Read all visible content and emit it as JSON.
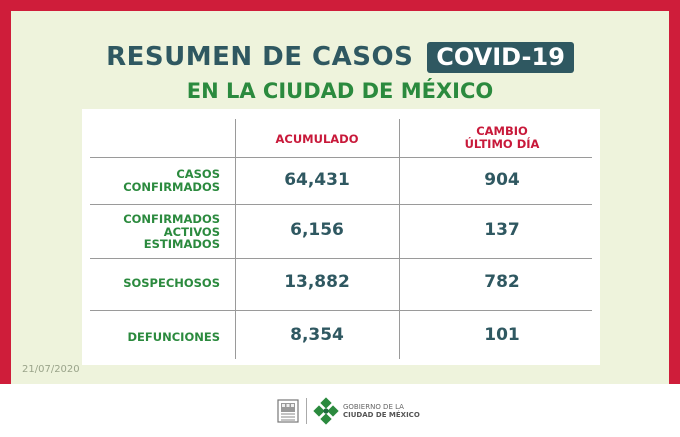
{
  "header": {
    "title": "RESUMEN DE CASOS",
    "badge": "COVID-19",
    "subtitle": "EN LA CIUDAD DE MÉXICO"
  },
  "table": {
    "col_accumulated": "ACUMULADO",
    "col_change_line1": "CAMBIO",
    "col_change_line2": "ÚLTIMO DÍA",
    "rows": [
      {
        "label_lines": [
          "CASOS",
          "CONFIRMADOS"
        ],
        "accumulated": "64,431",
        "change": "904"
      },
      {
        "label_lines": [
          "CONFIRMADOS",
          "ACTIVOS",
          "ESTIMADOS"
        ],
        "accumulated": "6,156",
        "change": "137"
      },
      {
        "label_lines": [
          "SOSPECHOSOS"
        ],
        "accumulated": "13,882",
        "change": "782"
      },
      {
        "label_lines": [
          "DEFUNCIONES"
        ],
        "accumulated": "8,354",
        "change": "101"
      }
    ]
  },
  "footer": {
    "date": "21/07/2020",
    "gov_line1": "GOBIERNO DE LA",
    "gov_line2": "CIUDAD DE MÉXICO"
  },
  "colors": {
    "frame": "#cf1d3a",
    "panel": "#eef3dc",
    "title": "#2f5861",
    "accent_green": "#2b8a3e",
    "accent_red": "#c8193a"
  }
}
